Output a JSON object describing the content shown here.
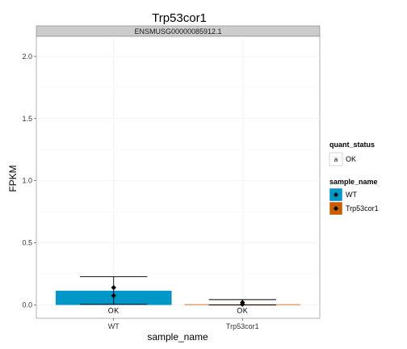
{
  "chart_data": {
    "type": "bar",
    "title": "Trp53cor1",
    "facet_label": "ENSMUSG00000085912.1",
    "xlabel": "sample_name",
    "ylabel": "FPKM",
    "ylim": [
      0,
      2.1
    ],
    "yticks": [
      "0.0",
      "0.5",
      "1.0",
      "1.5",
      "2.0"
    ],
    "categories": [
      "WT",
      "Trp53cor1"
    ],
    "values": [
      0.115,
      0.003
    ],
    "error_low": [
      0.005,
      0.0
    ],
    "error_high": [
      0.228,
      0.043
    ],
    "points": [
      [
        0.14,
        0.075
      ],
      [
        0.02,
        0.005
      ]
    ],
    "bar_labels": [
      "OK",
      "OK"
    ],
    "grid": true,
    "legend_position": "right",
    "legends": {
      "quant_status": {
        "title": "quant_status",
        "key_glyph": "a",
        "items": [
          "OK"
        ]
      },
      "sample_name": {
        "title": "sample_name",
        "items": [
          {
            "label": "WT",
            "color": "#0096c8"
          },
          {
            "label": "Trp53cor1",
            "color": "#c85a00"
          }
        ]
      }
    }
  }
}
